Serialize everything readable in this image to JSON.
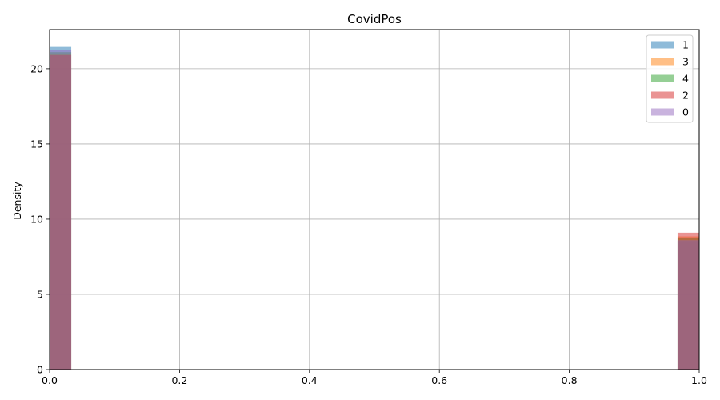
{
  "chart_data": {
    "type": "bar",
    "title": "CovidPos",
    "xlabel": "",
    "ylabel": "Density",
    "xlim": [
      0,
      1
    ],
    "ylim": [
      0,
      22.6
    ],
    "grid": true,
    "legend_position": "top-right",
    "x_ticks": [
      "0.0",
      "0.2",
      "0.4",
      "0.6",
      "0.8",
      "1.0"
    ],
    "x_tick_values": [
      0,
      0.2,
      0.4,
      0.6,
      0.8,
      1.0
    ],
    "y_ticks": [
      "0",
      "5",
      "10",
      "15",
      "20"
    ],
    "y_tick_values": [
      0,
      5,
      10,
      15,
      20
    ],
    "bin_edges": [
      [
        0,
        0.0333
      ],
      [
        0.9667,
        1.0
      ]
    ],
    "series": [
      {
        "name": "1",
        "color": "#1f77b4",
        "values": [
          21.45,
          8.55
        ]
      },
      {
        "name": "3",
        "color": "#ff7f0e",
        "values": [
          21.0,
          8.85
        ]
      },
      {
        "name": "4",
        "color": "#2ca02c",
        "values": [
          21.1,
          8.75
        ]
      },
      {
        "name": "2",
        "color": "#d62728",
        "values": [
          20.9,
          9.1
        ]
      },
      {
        "name": "0",
        "color": "#9467bd",
        "values": [
          21.25,
          8.6
        ]
      }
    ]
  }
}
